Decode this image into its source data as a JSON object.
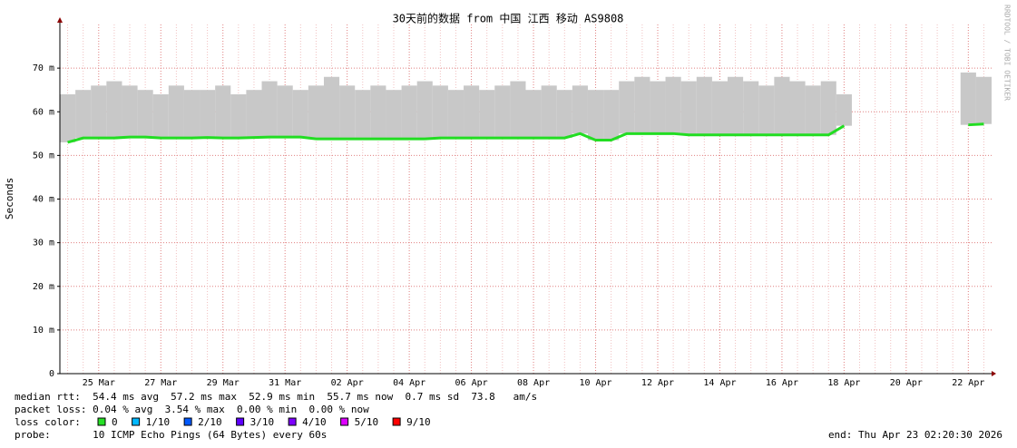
{
  "chart_data": {
    "type": "line",
    "title": "30天前的数据 from 中国 江西 移动 AS9808",
    "y_label": "Seconds",
    "side_label": "RRDTOOL / TOBI OETIKER",
    "ylim": [
      0,
      0.08
    ],
    "yticks": [
      0,
      {
        "value": 0.01,
        "label": "10 m"
      },
      {
        "value": 0.02,
        "label": "20 m"
      },
      {
        "value": 0.03,
        "label": "30 m"
      },
      {
        "value": 0.04,
        "label": "40 m"
      },
      {
        "value": 0.05,
        "label": "50 m"
      },
      {
        "value": 0.06,
        "label": "60 m"
      },
      {
        "value": 0.07,
        "label": "70 m"
      }
    ],
    "grid": true,
    "categories": [
      null,
      null,
      "25 Mar",
      null,
      null,
      null,
      "27 Mar",
      null,
      null,
      null,
      "29 Mar",
      null,
      null,
      null,
      "31 Mar",
      null,
      null,
      null,
      "02 Apr",
      null,
      null,
      null,
      "04 Apr",
      null,
      null,
      null,
      "06 Apr",
      null,
      null,
      null,
      "08 Apr",
      null,
      null,
      null,
      "10 Apr",
      null,
      null,
      null,
      "12 Apr",
      null,
      null,
      null,
      "14 Apr",
      null,
      null,
      null,
      "16 Apr",
      null,
      null,
      null,
      "18 Apr",
      null,
      null,
      null,
      "20 Apr",
      null,
      null,
      null,
      "22 Apr",
      null
    ],
    "series": [
      {
        "color": "#c8c8c8",
        "values": [
          0.064,
          0.065,
          0.066,
          0.067,
          0.066,
          0.065,
          0.064,
          0.066,
          0.065,
          0.065,
          0.066,
          0.064,
          0.065,
          0.067,
          0.066,
          0.065,
          0.066,
          0.068,
          0.066,
          0.065,
          0.066,
          0.065,
          0.066,
          0.067,
          0.066,
          0.065,
          0.066,
          0.065,
          0.066,
          0.067,
          0.065,
          0.066,
          0.065,
          0.066,
          0.065,
          0.065,
          0.067,
          0.068,
          0.067,
          0.068,
          0.067,
          0.068,
          0.067,
          0.068,
          0.067,
          0.066,
          0.068,
          0.067,
          0.066,
          0.067,
          0.064,
          null,
          null,
          null,
          null,
          null,
          null,
          null,
          0.069,
          0.068
        ]
      },
      {
        "color": "#22dd22",
        "values": [
          0.053,
          0.054,
          0.054,
          0.054,
          0.0542,
          0.0542,
          0.054,
          0.054,
          0.054,
          0.0541,
          0.054,
          0.054,
          0.0541,
          0.0542,
          0.0542,
          0.0542,
          0.0538,
          0.0538,
          0.0538,
          0.0538,
          0.0538,
          0.0538,
          0.0538,
          0.0538,
          0.054,
          0.054,
          0.054,
          0.054,
          0.054,
          0.054,
          0.054,
          0.054,
          0.054,
          0.055,
          0.0535,
          0.0535,
          0.055,
          0.055,
          0.055,
          0.055,
          0.0547,
          0.0547,
          0.0547,
          0.0547,
          0.0547,
          0.0547,
          0.0547,
          0.0547,
          0.0547,
          0.0547,
          0.0568,
          null,
          null,
          null,
          null,
          null,
          null,
          null,
          0.057,
          0.0572
        ]
      }
    ],
    "footer": {
      "median": "median rtt:  54.4 ms avg  57.2 ms max  52.9 ms min  55.7 ms now  0.7 ms sd  73.8   am/s",
      "loss": "packet loss: 0.04 % avg  3.54 % max  0.00 % min  0.00 % now",
      "loss_color_label": "loss color:",
      "loss_colors": [
        {
          "label": "0",
          "color": "#26e026"
        },
        {
          "label": "1/10",
          "color": "#00b8ff"
        },
        {
          "label": "2/10",
          "color": "#0059ff"
        },
        {
          "label": "3/10",
          "color": "#5e00ff"
        },
        {
          "label": "4/10",
          "color": "#7e00ff"
        },
        {
          "label": "5/10",
          "color": "#dd00ff"
        },
        {
          "label": "9/10",
          "color": "#ff0000"
        }
      ],
      "probe": "probe:       10 ICMP Echo Pings (64 Bytes) every 60s",
      "end": "end: Thu Apr 23 02:20:30 2026"
    }
  }
}
